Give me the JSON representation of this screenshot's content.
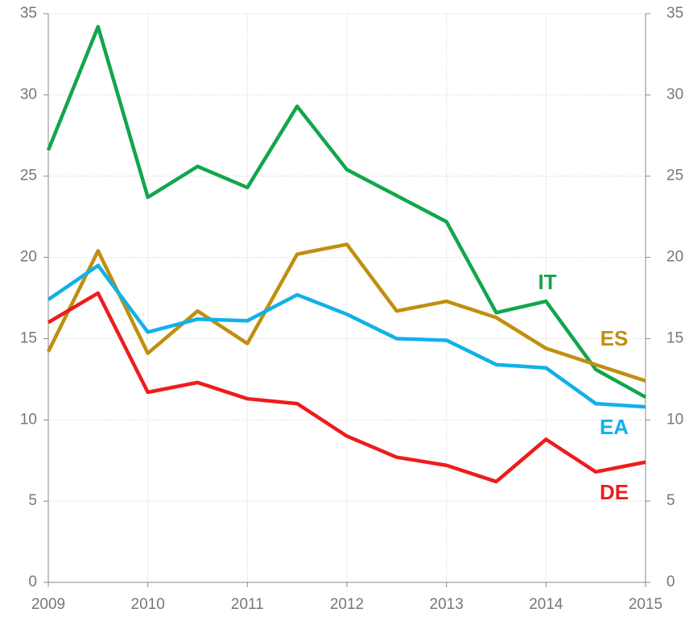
{
  "chart_data": {
    "type": "line",
    "x": [
      2009,
      2009.5,
      2010,
      2010.5,
      2011,
      2011.5,
      2012,
      2012.5,
      2013,
      2013.5,
      2014,
      2014.5,
      2015
    ],
    "series": [
      {
        "name": "IT",
        "color": "#12a64c",
        "values": [
          26.6,
          34.2,
          23.7,
          25.6,
          24.3,
          29.3,
          25.4,
          23.8,
          22.2,
          16.6,
          17.3,
          13.1,
          11.4
        ]
      },
      {
        "name": "ES",
        "color": "#c08f10",
        "values": [
          14.2,
          20.4,
          14.1,
          16.7,
          14.7,
          20.2,
          20.8,
          16.7,
          17.3,
          16.3,
          14.4,
          13.4,
          12.4
        ]
      },
      {
        "name": "EA",
        "color": "#12b0e8",
        "values": [
          17.4,
          19.5,
          15.4,
          16.2,
          16.1,
          17.7,
          16.5,
          15.0,
          14.9,
          13.4,
          13.2,
          11.0,
          10.8
        ]
      },
      {
        "name": "DE",
        "color": "#ee1c1c",
        "values": [
          16.0,
          17.8,
          11.7,
          12.3,
          11.3,
          11.0,
          9.0,
          7.7,
          7.2,
          6.2,
          8.8,
          6.8,
          7.4
        ]
      }
    ],
    "xlim": [
      2009,
      2015
    ],
    "xticks": [
      2009,
      2010,
      2011,
      2012,
      2013,
      2014,
      2015
    ],
    "ylim": [
      0,
      35
    ],
    "yticks": [
      0,
      5,
      10,
      15,
      20,
      25,
      30,
      35
    ],
    "y2lim": [
      0,
      35
    ],
    "y2ticks": [
      0,
      5,
      10,
      15,
      20,
      25,
      30,
      35
    ],
    "grid": true
  }
}
